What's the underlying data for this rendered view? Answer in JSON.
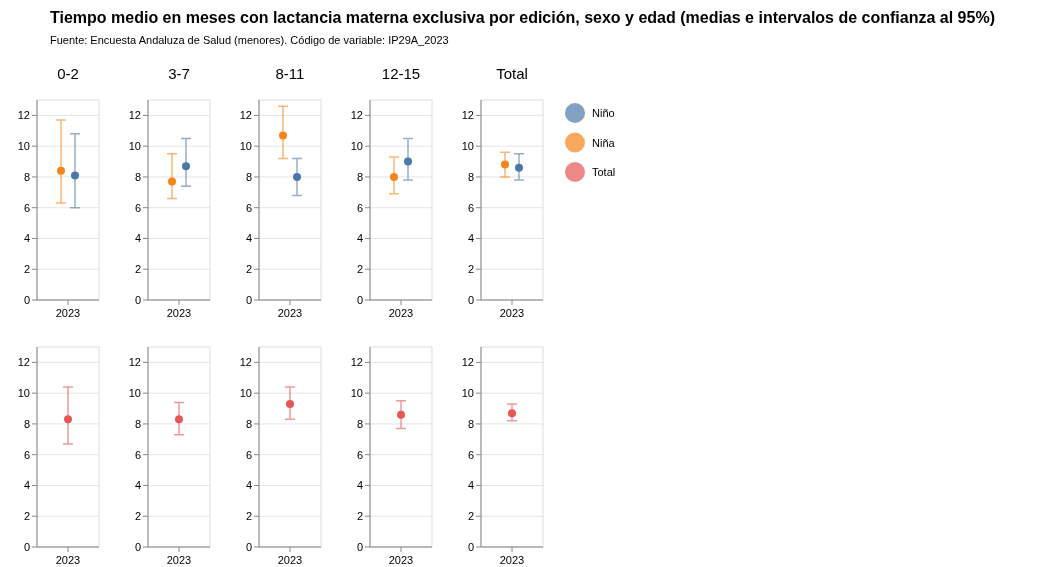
{
  "chart_data": [
    {
      "type": "scatter",
      "title": "0-2",
      "legend": "right",
      "annotations": [
        "Tiempo medio en meses con lactancia materna exclusiva por edición, sexo y edad (medias e intervalos de confianza al 95%)",
        "Fuente: Encuesta Andaluza de Salud (menores). Código de variable: IP29A_2023"
      ],
      "categories": [
        "2023"
      ],
      "ylim": [
        0,
        13
      ],
      "yticks": [
        0,
        2,
        4,
        6,
        8,
        10,
        12
      ],
      "grid": "y",
      "marker": "circle",
      "series": [
        {
          "name": "Niño",
          "color": "#4c78a8",
          "values": [
            8.1
          ],
          "errors": [
            [
              6.0,
              10.8
            ]
          ]
        },
        {
          "name": "Niña",
          "color": "#f58518",
          "values": [
            8.4
          ],
          "errors": [
            [
              6.3,
              11.7
            ]
          ]
        }
      ]
    },
    {
      "type": "scatter",
      "title": "3-7",
      "categories": [
        "2023"
      ],
      "ylim": [
        0,
        13
      ],
      "yticks": [
        0,
        2,
        4,
        6,
        8,
        10,
        12
      ],
      "grid": "y",
      "marker": "circle",
      "series": [
        {
          "color": "#4c78a8",
          "values": [
            8.7
          ],
          "errors": [
            [
              7.4,
              10.5
            ]
          ]
        },
        {
          "color": "#f58518",
          "values": [
            7.7
          ],
          "errors": [
            [
              6.6,
              9.5
            ]
          ]
        }
      ]
    },
    {
      "type": "scatter",
      "title": "8-11",
      "categories": [
        "2023"
      ],
      "ylim": [
        0,
        13
      ],
      "yticks": [
        0,
        2,
        4,
        6,
        8,
        10,
        12
      ],
      "grid": "y",
      "marker": "circle",
      "series": [
        {
          "color": "#4c78a8",
          "values": [
            8.0
          ],
          "errors": [
            [
              6.8,
              9.2
            ]
          ]
        },
        {
          "color": "#f58518",
          "values": [
            10.7
          ],
          "errors": [
            [
              9.2,
              12.6
            ]
          ]
        }
      ]
    },
    {
      "type": "scatter",
      "title": "12-15",
      "categories": [
        "2023"
      ],
      "ylim": [
        0,
        13
      ],
      "yticks": [
        0,
        2,
        4,
        6,
        8,
        10,
        12
      ],
      "grid": "y",
      "marker": "circle",
      "series": [
        {
          "color": "#4c78a8",
          "values": [
            9.0
          ],
          "errors": [
            [
              7.8,
              10.5
            ]
          ]
        },
        {
          "color": "#f58518",
          "values": [
            8.0
          ],
          "errors": [
            [
              6.9,
              9.3
            ]
          ]
        }
      ]
    },
    {
      "type": "scatter",
      "title": "Total",
      "categories": [
        "2023"
      ],
      "ylim": [
        0,
        13
      ],
      "yticks": [
        0,
        2,
        4,
        6,
        8,
        10,
        12
      ],
      "grid": "y",
      "marker": "circle",
      "series": [
        {
          "color": "#4c78a8",
          "values": [
            8.6
          ],
          "errors": [
            [
              7.8,
              9.5
            ]
          ]
        },
        {
          "color": "#f58518",
          "values": [
            8.8
          ],
          "errors": [
            [
              8.0,
              9.6
            ]
          ]
        }
      ]
    },
    {
      "type": "scatter",
      "legend": "right",
      "categories": [
        "2023"
      ],
      "ylim": [
        0,
        13
      ],
      "yticks": [
        0,
        2,
        4,
        6,
        8,
        10,
        12
      ],
      "grid": "y",
      "marker": "circle",
      "series": [
        {
          "name": "Total",
          "color": "#e45756",
          "values": [
            8.3
          ],
          "errors": [
            [
              6.7,
              10.4
            ]
          ]
        }
      ]
    },
    {
      "type": "scatter",
      "categories": [
        "2023"
      ],
      "ylim": [
        0,
        13
      ],
      "yticks": [
        0,
        2,
        4,
        6,
        8,
        10,
        12
      ],
      "grid": "y",
      "marker": "circle",
      "series": [
        {
          "color": "#e45756",
          "values": [
            8.3
          ],
          "errors": [
            [
              7.3,
              9.4
            ]
          ]
        }
      ]
    },
    {
      "type": "scatter",
      "categories": [
        "2023"
      ],
      "ylim": [
        0,
        13
      ],
      "yticks": [
        0,
        2,
        4,
        6,
        8,
        10,
        12
      ],
      "grid": "y",
      "marker": "circle",
      "series": [
        {
          "color": "#e45756",
          "values": [
            9.3
          ],
          "errors": [
            [
              8.3,
              10.4
            ]
          ]
        }
      ]
    },
    {
      "type": "scatter",
      "categories": [
        "2023"
      ],
      "ylim": [
        0,
        13
      ],
      "yticks": [
        0,
        2,
        4,
        6,
        8,
        10,
        12
      ],
      "grid": "y",
      "marker": "circle",
      "series": [
        {
          "color": "#e45756",
          "values": [
            8.6
          ],
          "errors": [
            [
              7.7,
              9.5
            ]
          ]
        }
      ]
    },
    {
      "type": "scatter",
      "categories": [
        "2023"
      ],
      "ylim": [
        0,
        13
      ],
      "yticks": [
        0,
        2,
        4,
        6,
        8,
        10,
        12
      ],
      "grid": "y",
      "marker": "circle",
      "series": [
        {
          "color": "#e45756",
          "values": [
            8.7
          ],
          "errors": [
            [
              8.2,
              9.3
            ]
          ]
        }
      ]
    }
  ]
}
